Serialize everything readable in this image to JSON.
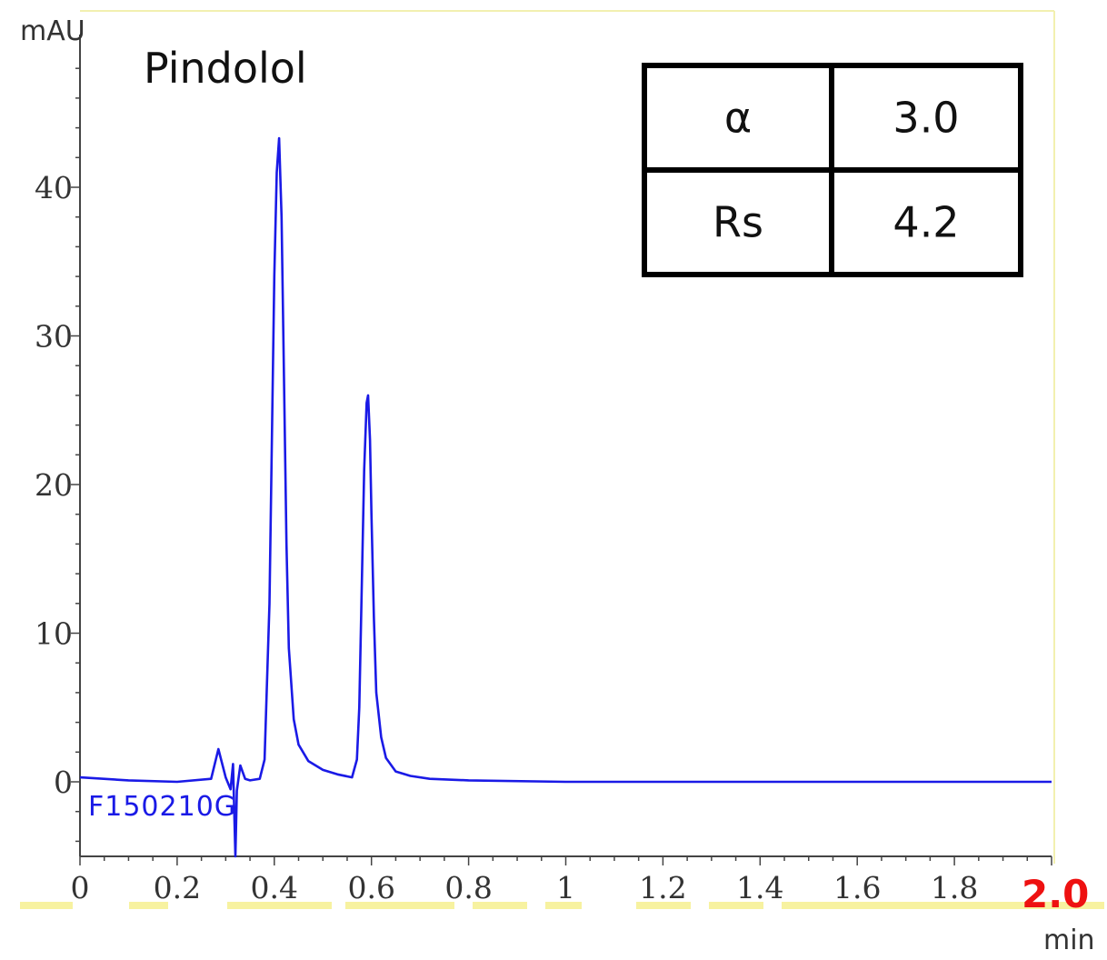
{
  "colors": {
    "trace": "#1a1ae6",
    "axis": "#444444",
    "frame": "#f2f0b0",
    "highlight": "#f7f2a0",
    "max_label": "#ee1111",
    "table_border": "#000000"
  },
  "title": "Pindolol",
  "sample_label": "F150210G",
  "x_max_label": "2.0",
  "results_table": [
    {
      "label": "α",
      "value": "3.0"
    },
    {
      "label": "Rs",
      "value": "4.2"
    }
  ],
  "chart_data": {
    "type": "line",
    "title": "Pindolol",
    "xlabel": "min",
    "ylabel": "mAU",
    "xlim": [
      0,
      2.0
    ],
    "ylim": [
      -5,
      50
    ],
    "grid": false,
    "x_ticks": [
      0,
      0.2,
      0.4,
      0.6,
      0.8,
      1,
      1.2,
      1.4,
      1.6,
      1.8
    ],
    "x_tick_labels": [
      "0",
      "0.2",
      "0.4",
      "0.6",
      "0.8",
      "1",
      "1.2",
      "1.4",
      "1.6",
      "1.8"
    ],
    "y_ticks": [
      0,
      10,
      20,
      30,
      40
    ],
    "y_tick_labels": [
      "0",
      "10",
      "20",
      "30",
      "40"
    ],
    "series": [
      {
        "x": [
          0,
          0.1,
          0.2,
          0.27,
          0.285,
          0.3,
          0.31,
          0.315,
          0.32,
          0.323,
          0.33,
          0.34,
          0.35,
          0.37,
          0.38,
          0.39,
          0.4,
          0.405,
          0.41,
          0.415,
          0.42,
          0.425,
          0.43,
          0.44,
          0.45,
          0.47,
          0.5,
          0.53,
          0.56,
          0.57,
          0.575,
          0.58,
          0.585,
          0.59,
          0.593,
          0.597,
          0.6,
          0.605,
          0.61,
          0.62,
          0.63,
          0.65,
          0.68,
          0.72,
          0.8,
          1.0,
          1.2,
          1.4,
          1.6,
          1.8,
          2.0
        ],
        "y": [
          0.3,
          0.1,
          0.0,
          0.2,
          2.2,
          0.3,
          -0.5,
          1.2,
          -5.2,
          -0.6,
          1.1,
          0.2,
          0.1,
          0.2,
          1.5,
          12,
          34,
          41,
          43.3,
          38,
          27,
          16,
          9,
          4.2,
          2.5,
          1.4,
          0.8,
          0.5,
          0.3,
          1.5,
          5,
          13,
          21,
          25.5,
          26,
          23,
          18,
          11,
          6,
          3,
          1.6,
          0.7,
          0.4,
          0.2,
          0.1,
          0.0,
          0.0,
          0.0,
          0.0,
          0.0,
          0.0
        ]
      }
    ]
  }
}
